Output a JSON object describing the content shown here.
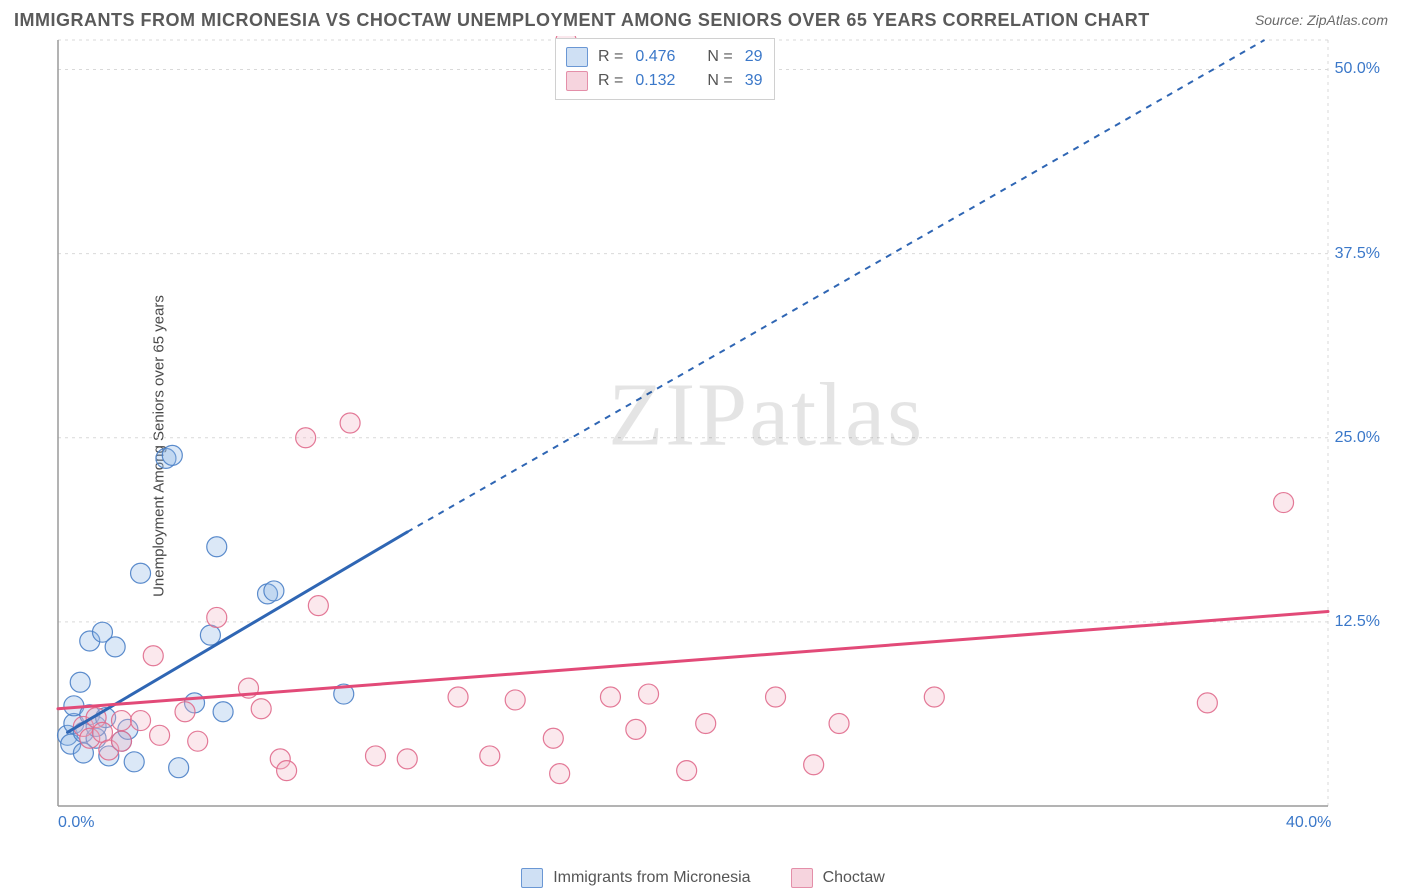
{
  "title": "IMMIGRANTS FROM MICRONESIA VS CHOCTAW UNEMPLOYMENT AMONG SENIORS OVER 65 YEARS CORRELATION CHART",
  "source_label": "Source: ",
  "source_value": "ZipAtlas.com",
  "ylabel": "Unemployment Among Seniors over 65 years",
  "watermark_a": "ZIP",
  "watermark_b": "atlas",
  "chart": {
    "type": "scatter",
    "xlim": [
      0,
      40
    ],
    "ylim": [
      0,
      52
    ],
    "x_tick_labels": [
      "0.0%",
      "40.0%"
    ],
    "y_tick_labels": [
      "12.5%",
      "25.0%",
      "37.5%",
      "50.0%"
    ],
    "y_tick_values": [
      12.5,
      25.0,
      37.5,
      50.0
    ],
    "grid_color": "#d9d9d9",
    "axis_color": "#9a9a9a",
    "background_color": "#ffffff",
    "marker_radius": 10,
    "marker_opacity": 0.32,
    "marker_stroke_opacity": 0.9,
    "line_width_solid": 3,
    "line_width_dash": 2,
    "dash_pattern": "6,6",
    "series": [
      {
        "name": "Immigrants from Micronesia",
        "color_fill": "#8fb7e6",
        "color_stroke": "#4a80c7",
        "line_color": "#2f66b4",
        "R": "0.476",
        "N": "29",
        "trend": {
          "x1": 0.3,
          "y1": 5.0,
          "x2_solid": 11.0,
          "y2_solid": 18.6,
          "x2_dash": 38.0,
          "y2_dash": 52.0
        },
        "points": [
          {
            "x": 0.3,
            "y": 4.8
          },
          {
            "x": 0.4,
            "y": 4.2
          },
          {
            "x": 0.5,
            "y": 5.6
          },
          {
            "x": 0.5,
            "y": 6.8
          },
          {
            "x": 0.7,
            "y": 8.4
          },
          {
            "x": 0.8,
            "y": 5.0
          },
          {
            "x": 0.8,
            "y": 3.6
          },
          {
            "x": 1.0,
            "y": 6.2
          },
          {
            "x": 1.0,
            "y": 11.2
          },
          {
            "x": 1.2,
            "y": 4.6
          },
          {
            "x": 1.2,
            "y": 5.4
          },
          {
            "x": 1.4,
            "y": 11.8
          },
          {
            "x": 1.5,
            "y": 6.0
          },
          {
            "x": 1.6,
            "y": 3.4
          },
          {
            "x": 1.8,
            "y": 10.8
          },
          {
            "x": 2.0,
            "y": 4.4
          },
          {
            "x": 2.2,
            "y": 5.2
          },
          {
            "x": 2.4,
            "y": 3.0
          },
          {
            "x": 2.6,
            "y": 15.8
          },
          {
            "x": 3.4,
            "y": 23.6
          },
          {
            "x": 3.6,
            "y": 23.8
          },
          {
            "x": 3.8,
            "y": 2.6
          },
          {
            "x": 4.3,
            "y": 7.0
          },
          {
            "x": 4.8,
            "y": 11.6
          },
          {
            "x": 5.0,
            "y": 17.6
          },
          {
            "x": 5.2,
            "y": 6.4
          },
          {
            "x": 6.6,
            "y": 14.4
          },
          {
            "x": 6.8,
            "y": 14.6
          },
          {
            "x": 9.0,
            "y": 7.6
          }
        ]
      },
      {
        "name": "Choctaw",
        "color_fill": "#f2b6c7",
        "color_stroke": "#e06a8c",
        "line_color": "#e24a78",
        "R": "0.132",
        "N": "39",
        "trend": {
          "x1": 0.0,
          "y1": 6.6,
          "x2_solid": 40.0,
          "y2_solid": 13.2,
          "x2_dash": 40.0,
          "y2_dash": 13.2
        },
        "points": [
          {
            "x": 0.8,
            "y": 5.4
          },
          {
            "x": 1.0,
            "y": 4.6
          },
          {
            "x": 1.2,
            "y": 6.0
          },
          {
            "x": 1.4,
            "y": 5.0
          },
          {
            "x": 1.6,
            "y": 3.8
          },
          {
            "x": 2.0,
            "y": 5.8
          },
          {
            "x": 2.0,
            "y": 4.4
          },
          {
            "x": 2.6,
            "y": 5.8
          },
          {
            "x": 3.0,
            "y": 10.2
          },
          {
            "x": 3.2,
            "y": 4.8
          },
          {
            "x": 4.4,
            "y": 4.4
          },
          {
            "x": 5.0,
            "y": 12.8
          },
          {
            "x": 6.0,
            "y": 8.0
          },
          {
            "x": 7.0,
            "y": 3.2
          },
          {
            "x": 7.2,
            "y": 2.4
          },
          {
            "x": 7.8,
            "y": 25.0
          },
          {
            "x": 8.2,
            "y": 13.6
          },
          {
            "x": 9.2,
            "y": 26.0
          },
          {
            "x": 10.0,
            "y": 3.4
          },
          {
            "x": 11.0,
            "y": 3.2
          },
          {
            "x": 12.6,
            "y": 7.4
          },
          {
            "x": 13.6,
            "y": 3.4
          },
          {
            "x": 14.4,
            "y": 7.2
          },
          {
            "x": 15.6,
            "y": 4.6
          },
          {
            "x": 15.8,
            "y": 2.2
          },
          {
            "x": 16.0,
            "y": 52.0
          },
          {
            "x": 17.4,
            "y": 7.4
          },
          {
            "x": 18.2,
            "y": 5.2
          },
          {
            "x": 18.6,
            "y": 7.6
          },
          {
            "x": 19.8,
            "y": 2.4
          },
          {
            "x": 20.4,
            "y": 5.6
          },
          {
            "x": 22.6,
            "y": 7.4
          },
          {
            "x": 23.8,
            "y": 2.8
          },
          {
            "x": 24.6,
            "y": 5.6
          },
          {
            "x": 27.6,
            "y": 7.4
          },
          {
            "x": 36.2,
            "y": 7.0
          },
          {
            "x": 38.6,
            "y": 20.6
          },
          {
            "x": 4.0,
            "y": 6.4
          },
          {
            "x": 6.4,
            "y": 6.6
          }
        ]
      }
    ]
  },
  "legend_top_rows": [
    {
      "swatch_fill": "#cfe0f4",
      "swatch_border": "#6a97d4",
      "R": "0.476",
      "N": "29"
    },
    {
      "swatch_fill": "#f6d4de",
      "swatch_border": "#e48fa9",
      "R": "0.132",
      "N": "39"
    }
  ],
  "legend_bottom": [
    {
      "swatch_fill": "#cfe0f4",
      "swatch_border": "#6a97d4",
      "label": "Immigrants from Micronesia"
    },
    {
      "swatch_fill": "#f6d4de",
      "swatch_border": "#e48fa9",
      "label": "Choctaw"
    }
  ],
  "labels": {
    "R": "R =",
    "N": "N ="
  }
}
